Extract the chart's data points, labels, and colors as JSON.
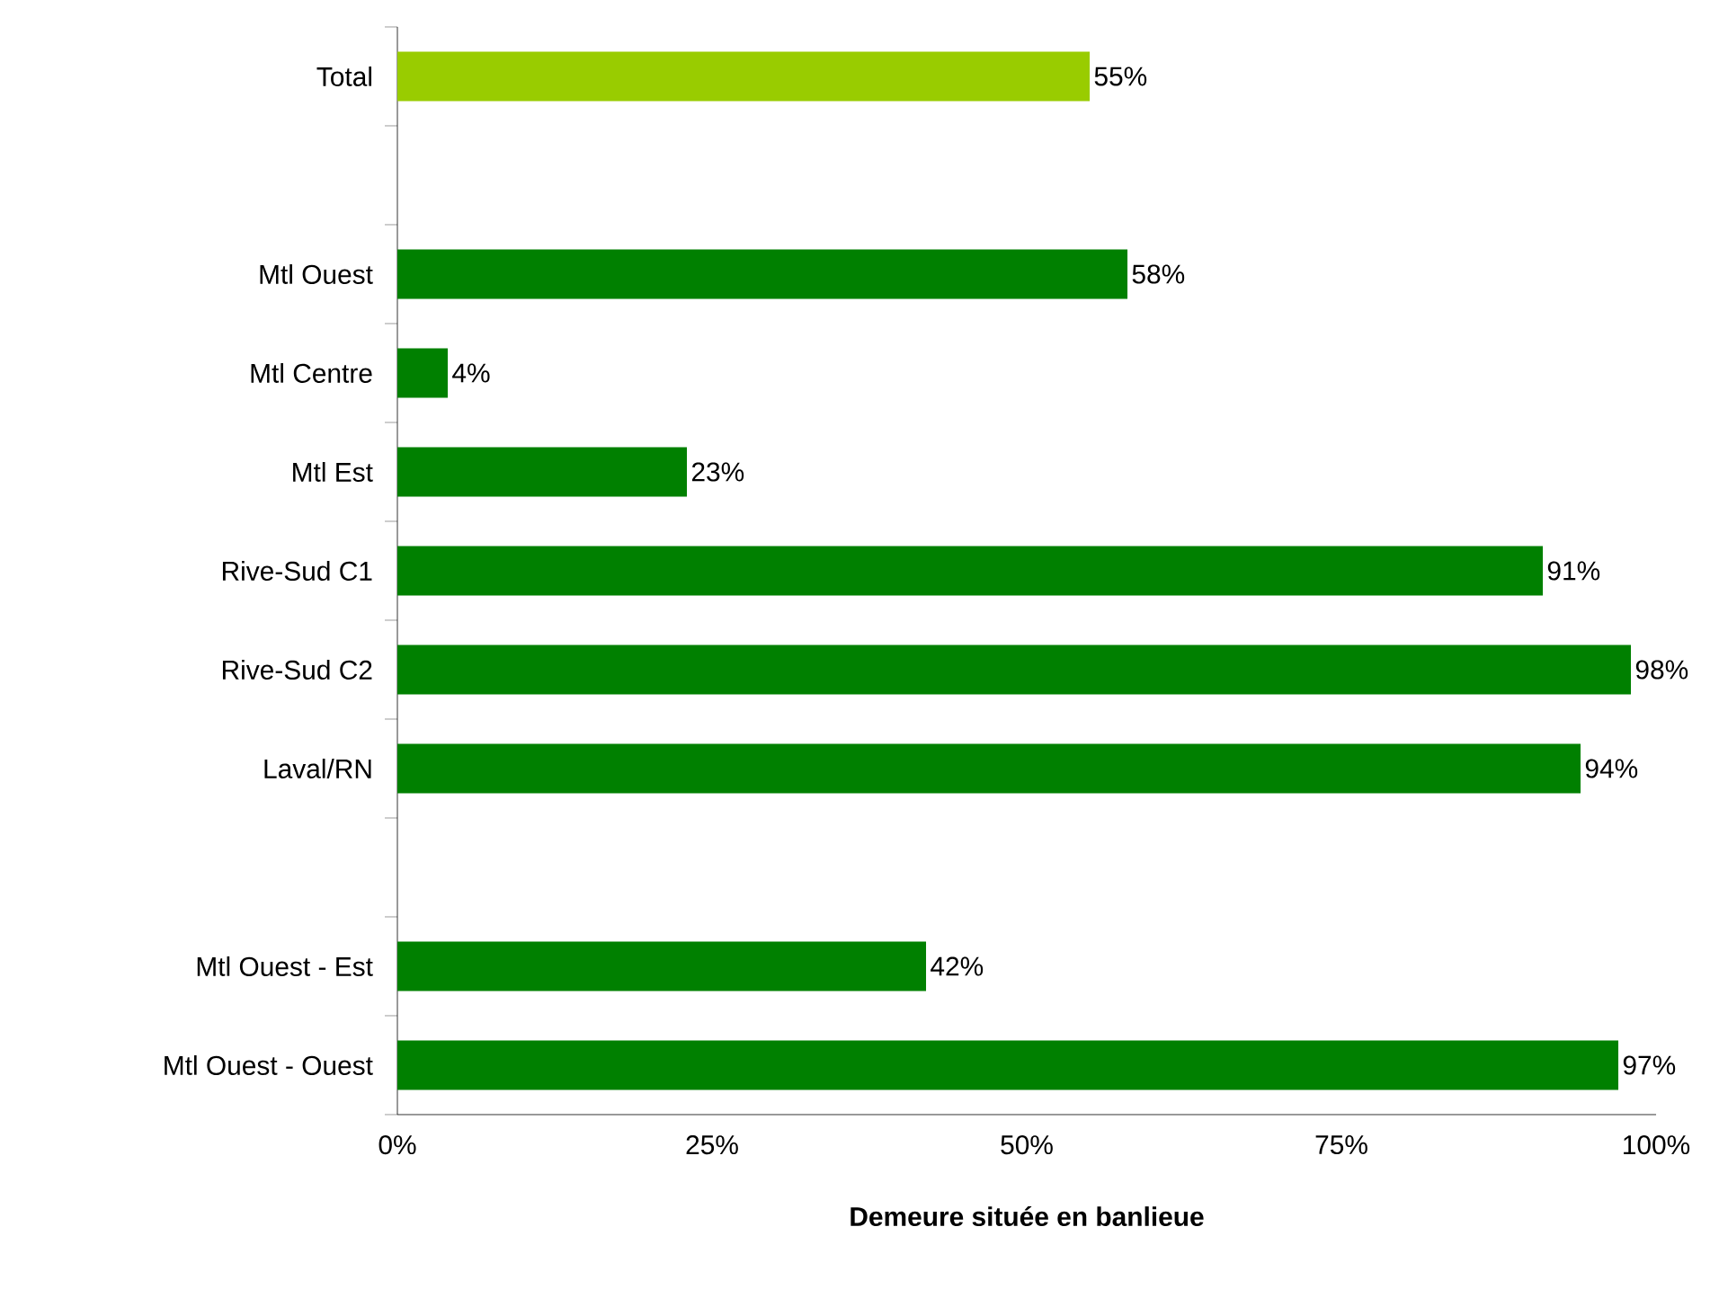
{
  "chart_data": {
    "type": "bar",
    "orientation": "horizontal",
    "xlabel": "Demeure située en banlieue",
    "categories": [
      "Total",
      null,
      "Mtl Ouest",
      "Mtl Centre",
      "Mtl Est",
      "Rive-Sud C1",
      "Rive-Sud C2",
      "Laval/RN",
      null,
      "Mtl Ouest - Est",
      "Mtl Ouest - Ouest"
    ],
    "values": [
      55,
      null,
      58,
      4,
      23,
      91,
      98,
      94,
      null,
      42,
      97
    ],
    "value_labels": [
      "55%",
      null,
      "58%",
      "4%",
      "23%",
      "91%",
      "98%",
      "94%",
      null,
      "42%",
      "97%"
    ],
    "colors": [
      "#99cc00",
      null,
      "#008000",
      "#008000",
      "#008000",
      "#008000",
      "#008000",
      "#008000",
      null,
      "#008000",
      "#008000"
    ],
    "xlim": [
      0,
      100
    ],
    "xticks": [
      {
        "value": 0,
        "label": "0%"
      },
      {
        "value": 25,
        "label": "25%"
      },
      {
        "value": 50,
        "label": "50%"
      },
      {
        "value": 75,
        "label": "75%"
      },
      {
        "value": 100,
        "label": "100%"
      }
    ],
    "grid": false
  }
}
